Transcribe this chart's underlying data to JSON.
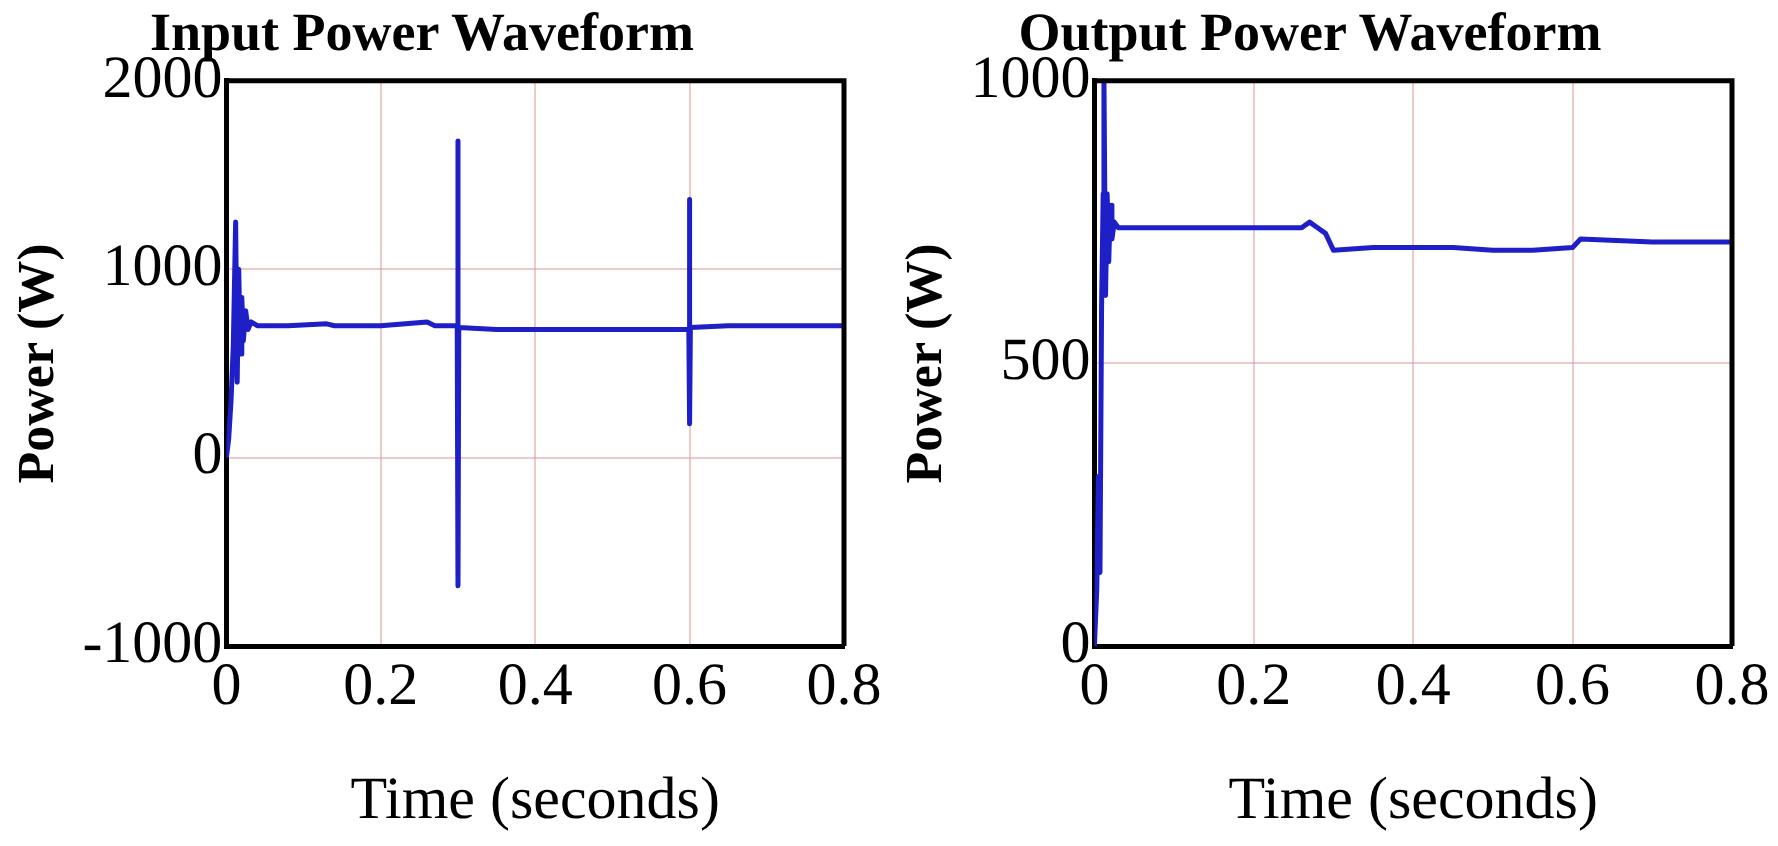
{
  "chart_data": [
    {
      "type": "line",
      "title": "Input Power Waveform",
      "xlabel": "Time (seconds)",
      "ylabel": "Power (W)",
      "xlim": [
        0,
        0.8
      ],
      "xticks": [
        0,
        0.2,
        0.4,
        0.6,
        0.8
      ],
      "ylim": [
        -1000,
        2000
      ],
      "yticks": [
        -1000,
        0,
        1000,
        2000
      ],
      "grid": true,
      "legend": false,
      "marker": "none",
      "line_style": "solid",
      "series": [
        {
          "color": "#1f1fc8",
          "x": [
            0,
            0.003,
            0.006,
            0.009,
            0.012,
            0.014,
            0.016,
            0.018,
            0.02,
            0.022,
            0.025,
            0.028,
            0.032,
            0.04,
            0.08,
            0.13,
            0.14,
            0.2,
            0.26,
            0.27,
            0.299,
            0.3,
            0.3,
            0.301,
            0.35,
            0.45,
            0.55,
            0.599,
            0.6,
            0.6,
            0.601,
            0.65,
            0.7,
            0.8
          ],
          "values": [
            0,
            100,
            300,
            600,
            1250,
            400,
            1000,
            550,
            850,
            620,
            780,
            680,
            720,
            700,
            700,
            710,
            700,
            700,
            720,
            700,
            700,
            1680,
            -680,
            690,
            680,
            680,
            680,
            680,
            1370,
            180,
            690,
            700,
            700,
            700
          ]
        }
      ]
    },
    {
      "type": "line",
      "title": "Output Power Waveform",
      "xlabel": "Time (seconds)",
      "ylabel": "Power (W)",
      "xlim": [
        0,
        0.8
      ],
      "xticks": [
        0,
        0.2,
        0.4,
        0.6,
        0.8
      ],
      "ylim": [
        0,
        1000
      ],
      "yticks": [
        0,
        500,
        1000
      ],
      "grid": true,
      "legend": false,
      "marker": "none",
      "line_style": "solid",
      "series": [
        {
          "color": "#1f1fc8",
          "x": [
            0,
            0.003,
            0.005,
            0.007,
            0.009,
            0.011,
            0.012,
            0.014,
            0.016,
            0.018,
            0.02,
            0.022,
            0.025,
            0.03,
            0.05,
            0.13,
            0.14,
            0.2,
            0.26,
            0.27,
            0.28,
            0.29,
            0.3,
            0.35,
            0.45,
            0.5,
            0.55,
            0.6,
            0.61,
            0.7,
            0.8
          ],
          "values": [
            0,
            100,
            300,
            130,
            600,
            800,
            1000,
            620,
            800,
            680,
            780,
            720,
            750,
            740,
            740,
            740,
            740,
            740,
            740,
            750,
            740,
            730,
            700,
            705,
            705,
            700,
            700,
            705,
            720,
            715,
            715
          ]
        }
      ]
    }
  ]
}
